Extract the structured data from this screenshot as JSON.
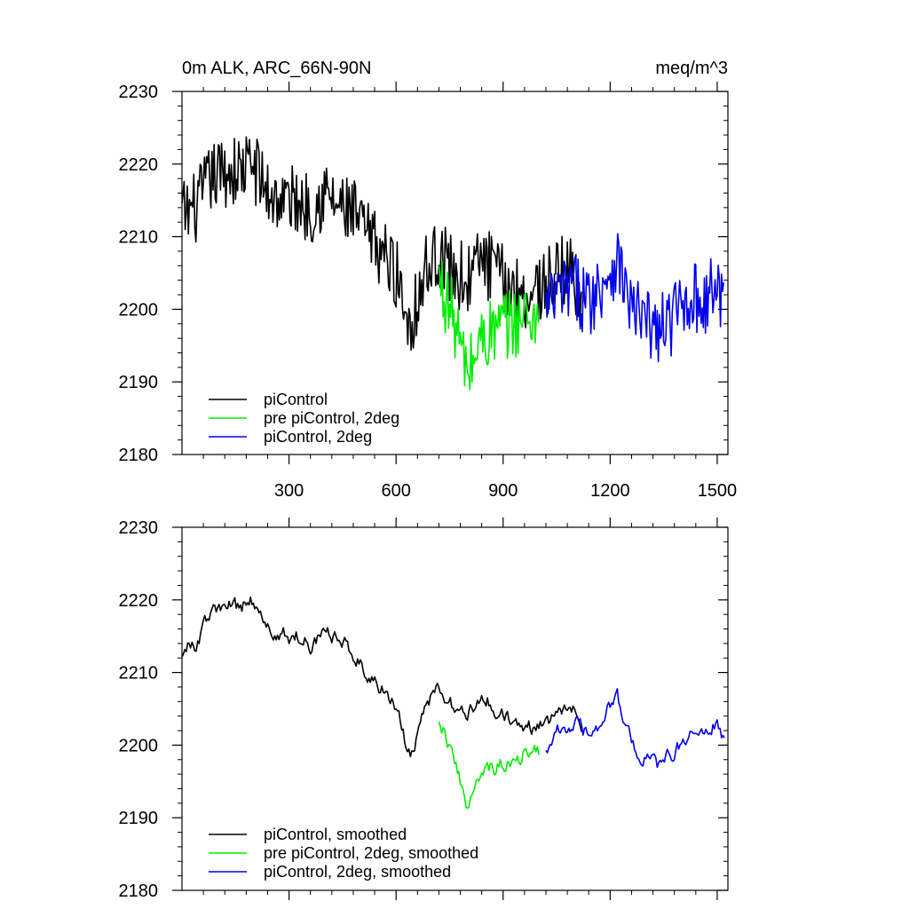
{
  "colors": {
    "series_0": "#000000",
    "series_1": "#00ee00",
    "series_2": "#0000ee"
  },
  "chart_data": [
    {
      "type": "line",
      "title_left": "0m ALK, ARC_66N-90N",
      "title_right": "meq/m^3",
      "xlim": [
        0,
        1530
      ],
      "ylim": [
        2180,
        2230
      ],
      "x_ticks": [
        300,
        600,
        900,
        1200,
        1500
      ],
      "x_tick_labels": [
        "300",
        "600",
        "900",
        "1200",
        "1500"
      ],
      "y_ticks": [
        2180,
        2190,
        2200,
        2210,
        2220,
        2230
      ],
      "y_tick_labels": [
        "2180",
        "2190",
        "2200",
        "2210",
        "2220",
        "2230"
      ],
      "legend_placement": "bottom-left",
      "series": [
        {
          "name": "piControl",
          "color": "#000000",
          "x": [
            0,
            40,
            80,
            120,
            160,
            200,
            240,
            280,
            320,
            360,
            400,
            440,
            480,
            520,
            560,
            600,
            640,
            680,
            720,
            760,
            800,
            840,
            880,
            920,
            960,
            1000,
            1040,
            1080,
            1120
          ],
          "y": [
            2213,
            2214,
            2218,
            2219,
            2219,
            2220,
            2216,
            2215,
            2215,
            2214,
            2216,
            2214,
            2213,
            2210,
            2208,
            2205,
            2198,
            2205,
            2208,
            2205,
            2204,
            2207,
            2205,
            2203,
            2202,
            2203,
            2204,
            2206,
            2203
          ]
        },
        {
          "name": "pre piControl, 2deg",
          "color": "#00ee00",
          "x": [
            720,
            760,
            800,
            840,
            880,
            920,
            960,
            1000
          ],
          "y": [
            2204,
            2199,
            2191,
            2196,
            2197,
            2198,
            2199,
            2199
          ]
        },
        {
          "name": "piControl, 2deg",
          "color": "#0000ee",
          "x": [
            1020,
            1060,
            1100,
            1140,
            1180,
            1220,
            1260,
            1300,
            1340,
            1380,
            1420,
            1460,
            1500,
            1520
          ],
          "y": [
            2200,
            2202,
            2203,
            2201,
            2204,
            2207,
            2200,
            2198,
            2197,
            2199,
            2202,
            2201,
            2203,
            2201
          ]
        }
      ]
    },
    {
      "type": "line",
      "xlim": [
        0,
        1530
      ],
      "ylim": [
        2180,
        2230
      ],
      "x_ticks": [
        300,
        600,
        900,
        1200,
        1500
      ],
      "y_ticks": [
        2180,
        2190,
        2200,
        2210,
        2220,
        2230
      ],
      "y_tick_labels": [
        "2180",
        "2190",
        "2200",
        "2210",
        "2220",
        "2230"
      ],
      "legend_placement": "bottom-left",
      "series": [
        {
          "name": "piControl, smoothed",
          "color": "#000000",
          "x": [
            0,
            40,
            80,
            120,
            160,
            200,
            240,
            280,
            320,
            360,
            400,
            440,
            480,
            520,
            560,
            600,
            640,
            680,
            720,
            760,
            800,
            840,
            880,
            920,
            960,
            1000,
            1040,
            1080,
            1120
          ],
          "y": [
            2213,
            2214,
            2218,
            2219,
            2219,
            2220,
            2216,
            2215,
            2215,
            2214,
            2216,
            2214,
            2213,
            2210,
            2208,
            2205,
            2198,
            2205,
            2208,
            2205,
            2204,
            2207,
            2205,
            2203,
            2202,
            2203,
            2204,
            2206,
            2203
          ]
        },
        {
          "name": "pre piControl, 2deg, smoothed",
          "color": "#00ee00",
          "x": [
            720,
            760,
            800,
            840,
            880,
            920,
            960,
            1000
          ],
          "y": [
            2204,
            2199,
            2191,
            2196,
            2197,
            2198,
            2199,
            2199
          ]
        },
        {
          "name": "piControl, 2deg, smoothed",
          "color": "#0000ee",
          "x": [
            1020,
            1060,
            1100,
            1140,
            1180,
            1220,
            1260,
            1300,
            1340,
            1380,
            1420,
            1460,
            1500,
            1520
          ],
          "y": [
            2200,
            2202,
            2203,
            2201,
            2204,
            2207,
            2200,
            2198,
            2197,
            2199,
            2202,
            2201,
            2203,
            2201
          ]
        }
      ]
    }
  ]
}
